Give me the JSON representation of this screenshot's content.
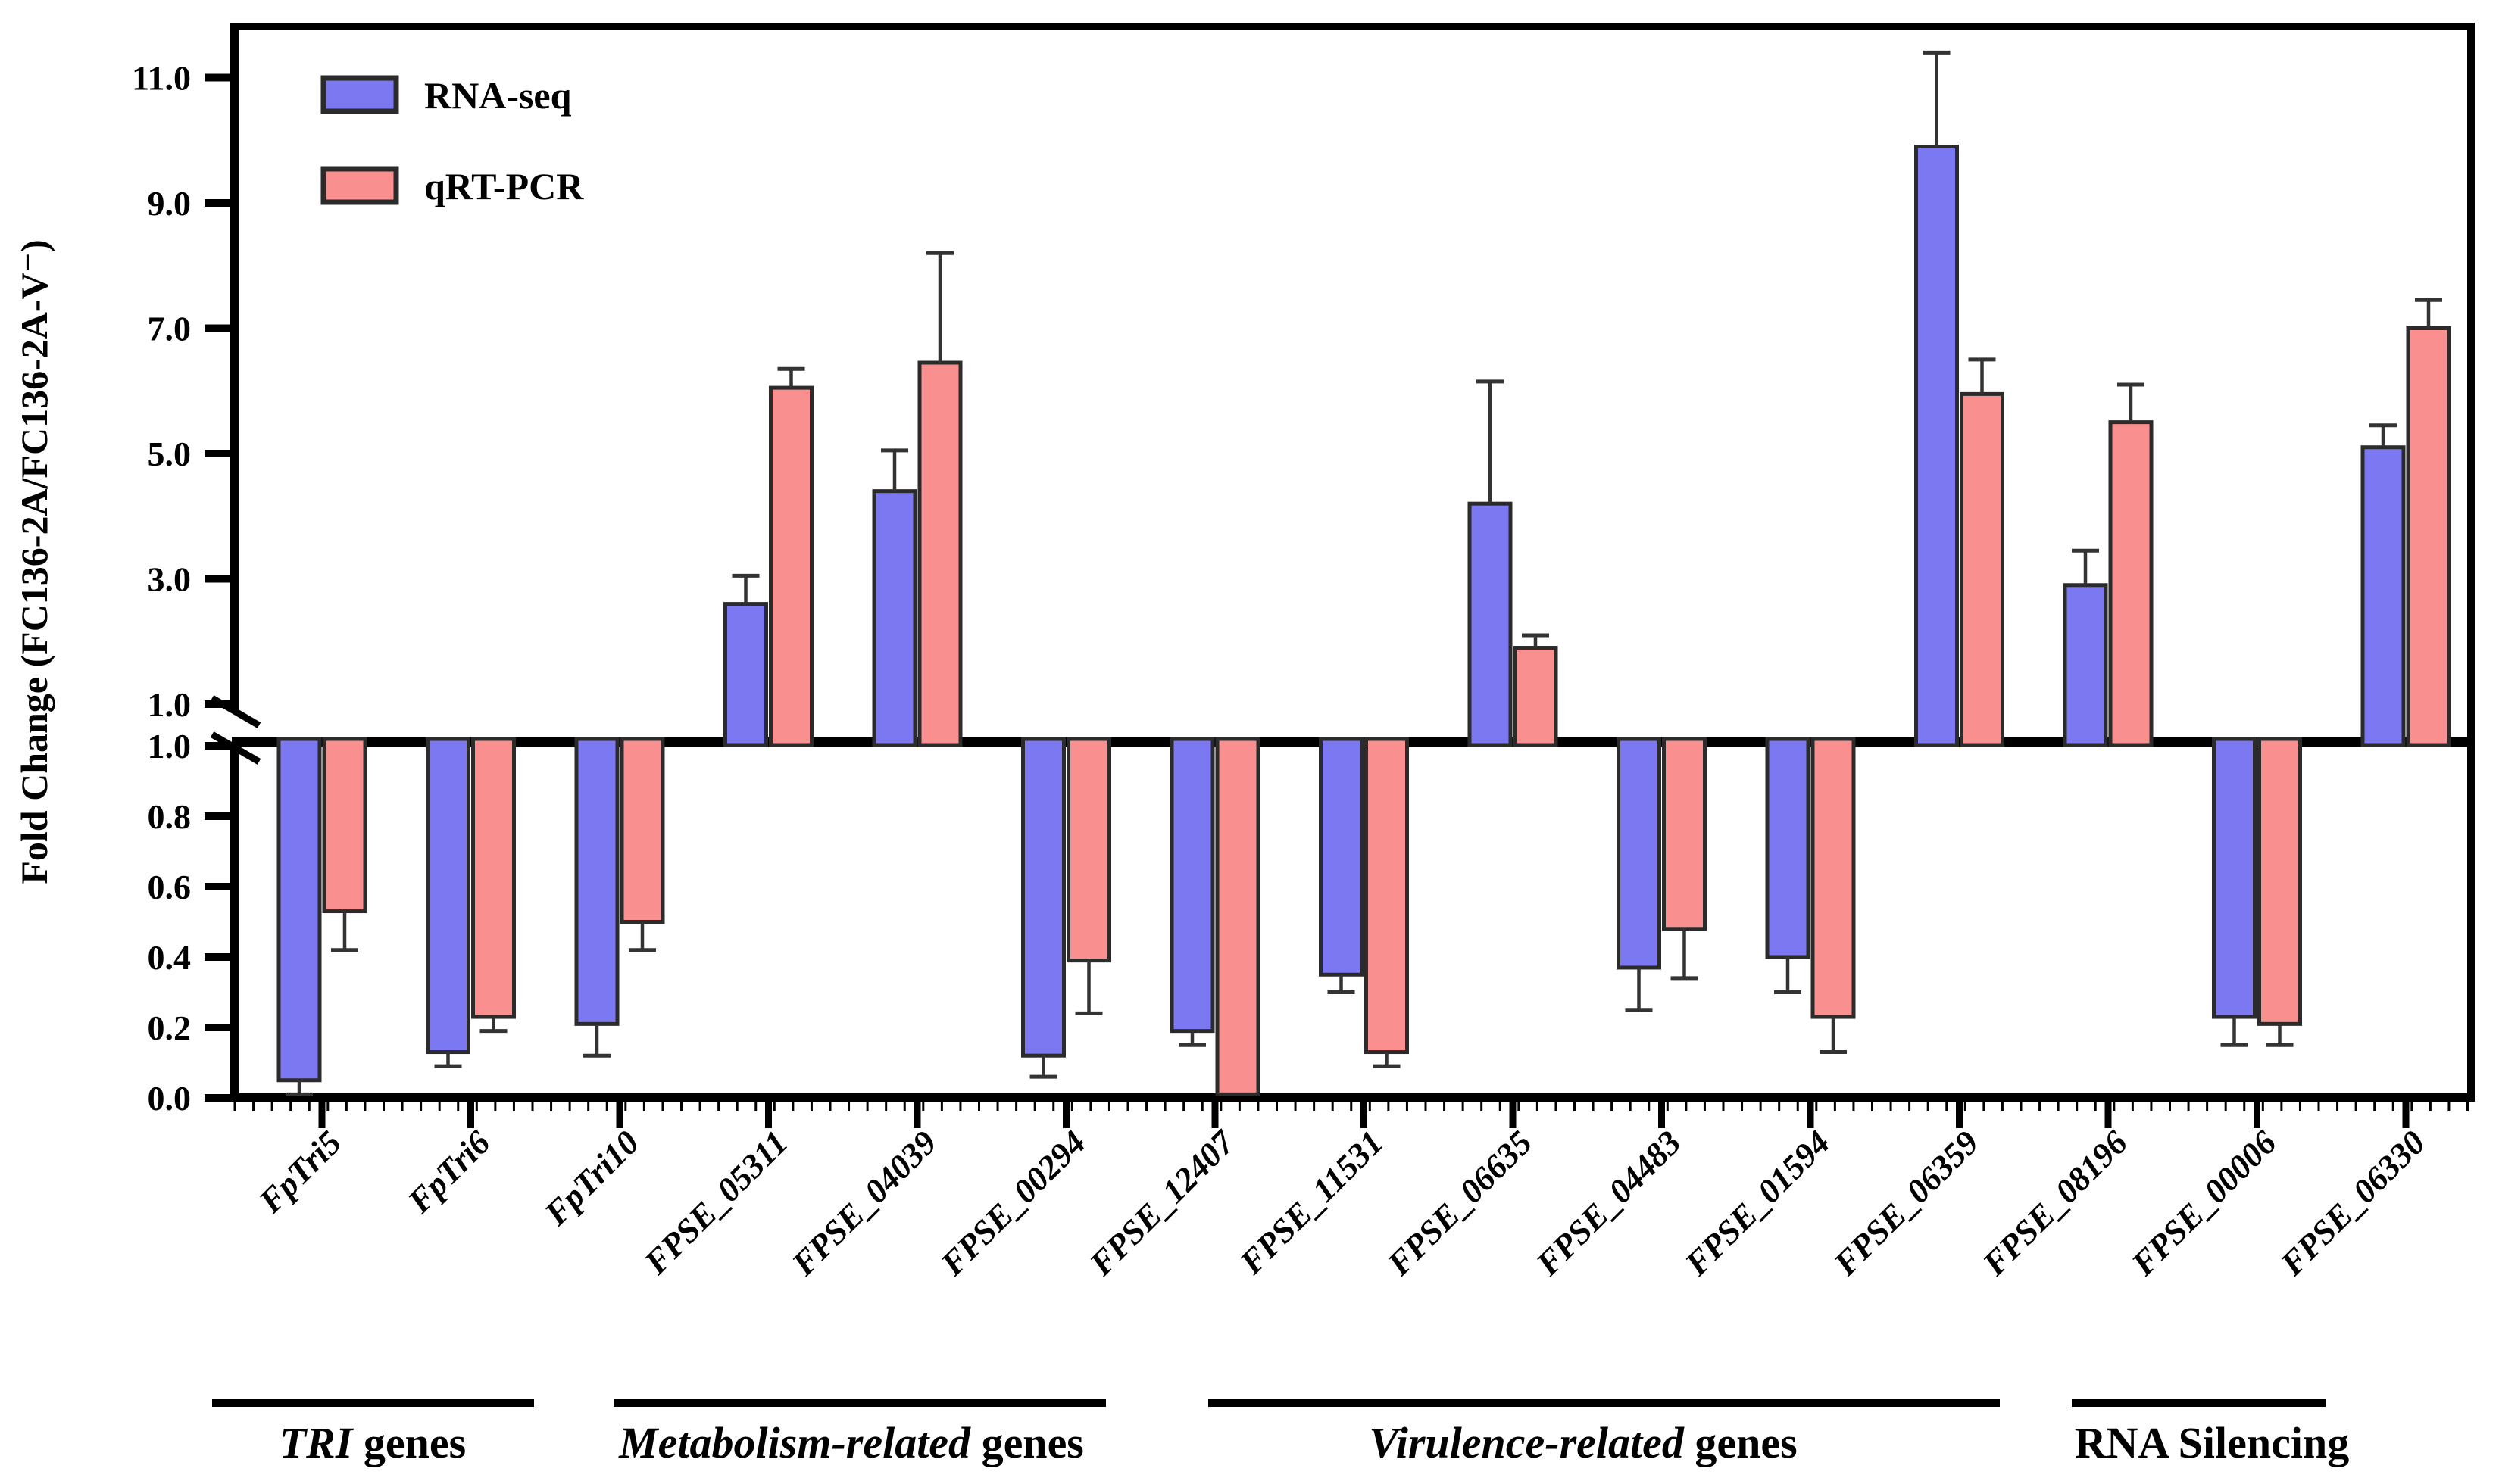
{
  "chart_data": {
    "type": "bar",
    "title": "",
    "ylabel": "Fold Change (FC136-2A/FC136-2A-V⁻)",
    "xlabel": "",
    "legend_position": "top-left inside plot",
    "grid": false,
    "axis_break": {
      "break_value": 1.0,
      "upper_ticks": [
        "11.0",
        "9.0",
        "7.0",
        "5.0",
        "3.0",
        "1.0"
      ],
      "upper_tick_values": [
        11,
        9,
        7,
        5,
        3,
        1
      ],
      "upper_ylim": [
        1.0,
        11.5
      ],
      "lower_ticks": [
        "1.0",
        "0.8",
        "0.6",
        "0.4",
        "0.2",
        "0.0"
      ],
      "lower_tick_values": [
        1.0,
        0.8,
        0.6,
        0.4,
        0.2,
        0.0
      ],
      "lower_ylim": [
        0.0,
        1.0
      ]
    },
    "categories": [
      "FpTri5",
      "FpTri6",
      "FpTri10",
      "FPSE_05311",
      "FPSE_04039",
      "FPSE_00294",
      "FPSE_12407",
      "FPSE_11531",
      "FPSE_06635",
      "FPSE_04483",
      "FPSE_01594",
      "FPSE_06359",
      "FPSE_08196",
      "FPSE_00006",
      "FPSE_06330"
    ],
    "series": [
      {
        "name": "RNA-seq",
        "color": "#7b78f2",
        "values": [
          0.05,
          0.13,
          0.21,
          2.6,
          4.4,
          0.12,
          0.19,
          0.35,
          4.2,
          0.37,
          0.4,
          9.9,
          2.9,
          0.23,
          5.1
        ],
        "errors": [
          0.04,
          0.04,
          0.09,
          0.45,
          0.65,
          0.06,
          0.04,
          0.05,
          1.95,
          0.12,
          0.1,
          1.5,
          0.55,
          0.08,
          0.35
        ]
      },
      {
        "name": "qRT-PCR",
        "color": "#fa8f8f",
        "values": [
          0.53,
          0.23,
          0.5,
          6.05,
          6.45,
          0.39,
          0.01,
          0.13,
          1.9,
          0.48,
          0.23,
          5.95,
          5.5,
          0.21,
          7.0
        ],
        "errors": [
          0.11,
          0.04,
          0.08,
          0.3,
          1.75,
          0.15,
          0.0,
          0.04,
          0.2,
          0.14,
          0.1,
          0.55,
          0.6,
          0.06,
          0.45
        ]
      }
    ],
    "groups": [
      {
        "italic_part": "TRI",
        "regular_part": " genes",
        "first_gene": 0,
        "last_gene": 2,
        "underline_x": [
          280,
          705
        ],
        "title_x": 492
      },
      {
        "italic_part": "Metabolism-related",
        "regular_part": " genes",
        "first_gene": 3,
        "last_gene": 5,
        "underline_x": [
          810,
          1460
        ],
        "title_x": 1124
      },
      {
        "italic_part": "Virulence-related",
        "regular_part": " genes",
        "first_gene": 6,
        "last_gene": 11,
        "underline_x": [
          1595,
          2640
        ],
        "title_x": 2090
      },
      {
        "italic_part": "",
        "regular_part": "RNA Silencing",
        "first_gene": 12,
        "last_gene": 14,
        "underline_x": [
          2735,
          3070
        ],
        "title_x": 2920
      }
    ],
    "colors": {
      "rna_seq_fill": "#7b78f2",
      "qrt_pcr_fill": "#fa8f8f",
      "bar_stroke": "#2b2b2b",
      "axis": "#000000",
      "error_bar": "#333333",
      "background": "#ffffff"
    }
  }
}
